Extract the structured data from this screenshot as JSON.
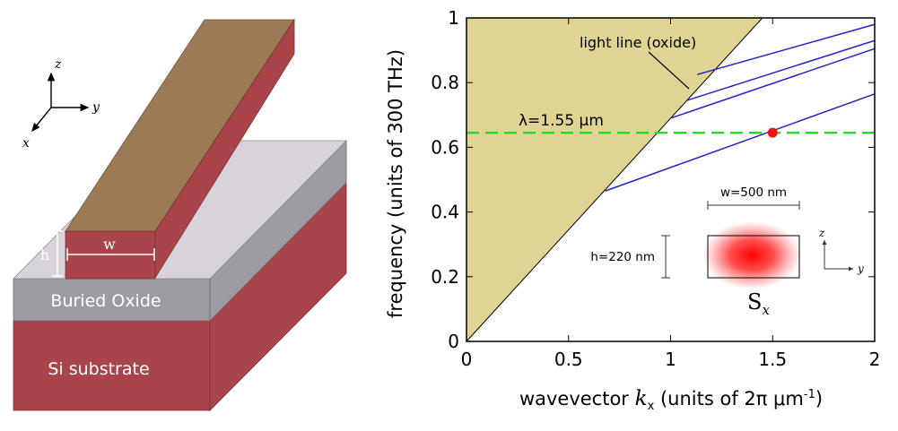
{
  "waveguide_diagram": {
    "axes": {
      "z": "z",
      "y": "y",
      "x": "x"
    },
    "labels": {
      "h": "h",
      "w": "w",
      "buried_oxide": "Buried Oxide",
      "substrate": "Si substrate"
    },
    "colors": {
      "silicon_top": "#9b7a55",
      "silicon_side": "#a9444a",
      "oxide_top": "#d8d2da",
      "oxide_side": "#9d9aa1",
      "substrate": "#a9444a"
    }
  },
  "chart_data": {
    "type": "line",
    "xlabel": "wavevector",
    "xlabel_symbol": "k",
    "xlabel_subscript": "x",
    "xlabel_units": "(units of 2π μm",
    "xlabel_units_sup": "-1",
    "xlabel_units_close": ")",
    "ylabel": "frequency (units of 300 THz)",
    "xlim": [
      0,
      2
    ],
    "ylim": [
      0,
      1
    ],
    "xticks": [
      "0",
      "0.5",
      "1",
      "1.5",
      "2"
    ],
    "yticks": [
      "0",
      "0.2",
      "0.4",
      "0.6",
      "0.8",
      "1"
    ],
    "light_line": {
      "label": "light line (oxide)",
      "points": [
        [
          0,
          0
        ],
        [
          1.45,
          1.0
        ]
      ],
      "fill": "#e0d494"
    },
    "wavelength_line": {
      "label": "λ=1.55 μm",
      "y": 0.645,
      "color": "#22dd22"
    },
    "series": [
      {
        "x": [
          0.68,
          2.0
        ],
        "y": [
          0.465,
          0.765
        ]
      },
      {
        "x": [
          1.0,
          2.0
        ],
        "y": [
          0.69,
          0.905
        ]
      },
      {
        "x": [
          1.08,
          2.0
        ],
        "y": [
          0.745,
          0.93
        ]
      },
      {
        "x": [
          1.13,
          2.0
        ],
        "y": [
          0.825,
          0.98
        ]
      }
    ],
    "series_color": "#2222cc",
    "marker": {
      "x": 1.5,
      "y": 0.645,
      "color": "#ee1111"
    },
    "inset": {
      "width_label": "w=500 nm",
      "height_label": "h=220 nm",
      "mode_label": "S",
      "mode_subscript": "x",
      "axis_z": "z",
      "axis_y": "y"
    }
  }
}
